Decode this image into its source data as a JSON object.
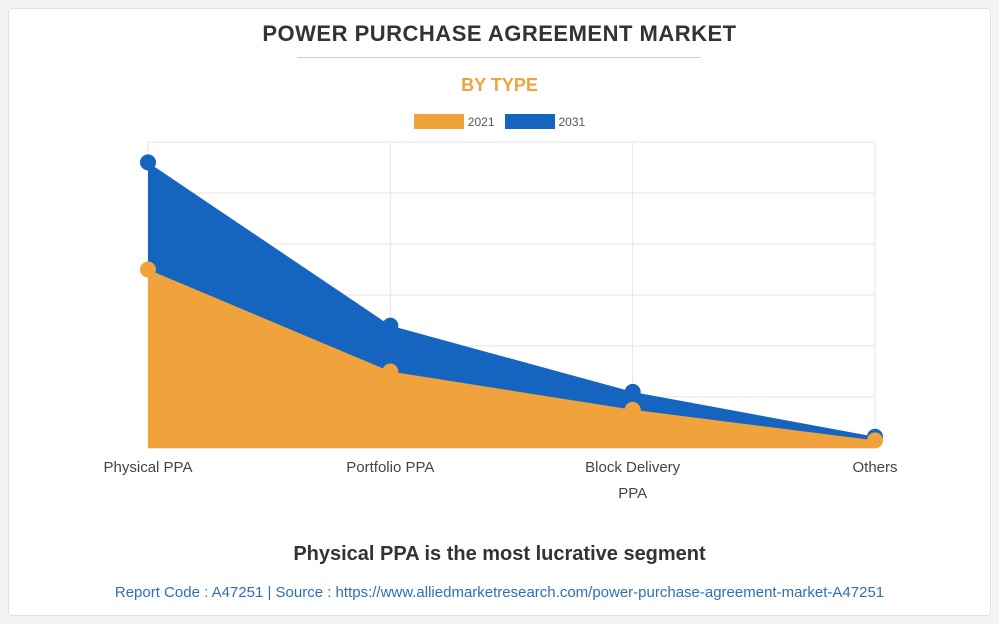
{
  "title": "POWER PURCHASE AGREEMENT MARKET",
  "subtitle": "BY TYPE",
  "legend": [
    {
      "label": "2021",
      "color": "#f0a33c"
    },
    {
      "label": "2031",
      "color": "#1565c0"
    }
  ],
  "chart_data": {
    "type": "area",
    "categories": [
      [
        "Physical PPA"
      ],
      [
        "Portfolio PPA"
      ],
      [
        "Block Delivery",
        "PPA"
      ],
      [
        "Others"
      ]
    ],
    "series": [
      {
        "name": "2021",
        "color": "#f0a33c",
        "values": [
          3.5,
          1.5,
          0.75,
          0.15
        ]
      },
      {
        "name": "2031",
        "color": "#1565c0",
        "values": [
          5.6,
          2.4,
          1.1,
          0.22
        ]
      }
    ],
    "ylim": [
      0,
      6
    ],
    "grid": true,
    "legend_position": "top"
  },
  "footer": {
    "headline": "Physical PPA is the most lucrative segment",
    "source": "Report Code : A47251  |  Source : https://www.alliedmarketresearch.com/power-purchase-agreement-market-A47251"
  }
}
